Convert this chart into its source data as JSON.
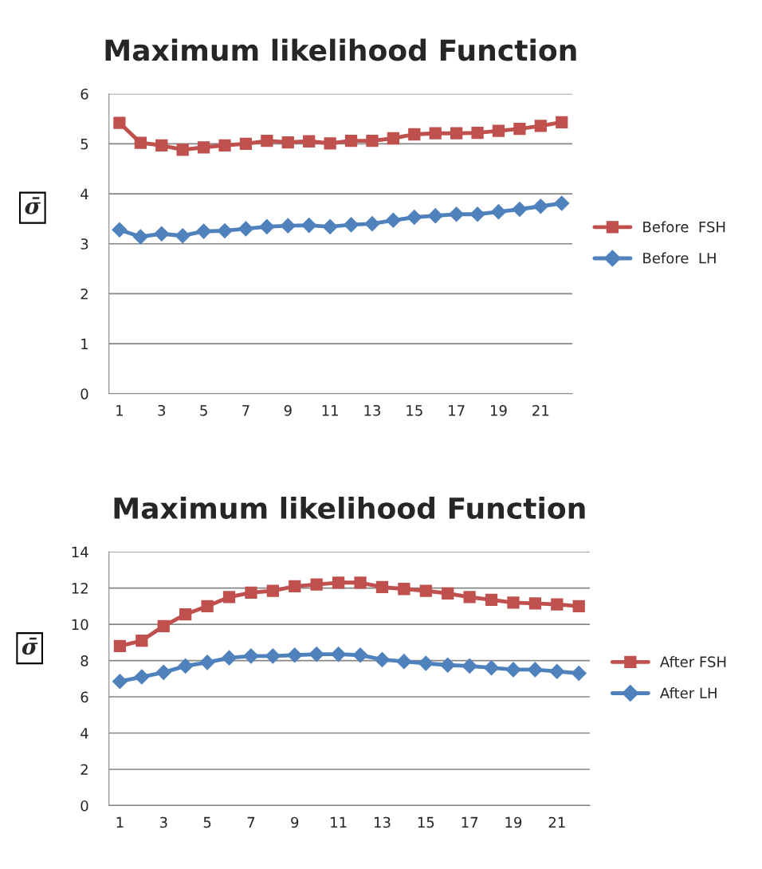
{
  "chart_data": [
    {
      "type": "line",
      "title": "Maximum likelihood Function",
      "ylabel": "σ̄",
      "categories": [
        "1",
        null,
        "3",
        null,
        "5",
        null,
        "7",
        null,
        "9",
        null,
        "11",
        null,
        "13",
        null,
        "15",
        null,
        "17",
        null,
        "19",
        null,
        "21",
        null
      ],
      "series": [
        {
          "name": "Before  FSH",
          "color": "#c0504d",
          "marker": "square",
          "values": [
            5.42,
            5.02,
            4.97,
            4.88,
            4.93,
            4.97,
            5.0,
            5.06,
            5.03,
            5.05,
            5.01,
            5.06,
            5.06,
            5.11,
            5.19,
            5.21,
            5.21,
            5.22,
            5.26,
            5.3,
            5.36,
            5.43
          ]
        },
        {
          "name": "Before  LH",
          "color": "#4f81bd",
          "marker": "diamond",
          "values": [
            3.28,
            3.14,
            3.2,
            3.16,
            3.25,
            3.26,
            3.3,
            3.34,
            3.36,
            3.37,
            3.34,
            3.38,
            3.4,
            3.47,
            3.53,
            3.56,
            3.59,
            3.59,
            3.64,
            3.69,
            3.75,
            3.81
          ]
        }
      ],
      "ylim": [
        0,
        6
      ],
      "yticks": [
        0,
        1,
        2,
        3,
        4,
        5,
        6
      ],
      "grid": "y",
      "legend": "right",
      "line_style": "solid"
    },
    {
      "type": "line",
      "title": "Maximum likelihood Function",
      "ylabel": "σ̄",
      "categories": [
        "1",
        null,
        "3",
        null,
        "5",
        null,
        "7",
        null,
        "9",
        null,
        "11",
        null,
        "13",
        null,
        "15",
        null,
        "17",
        null,
        "19",
        null,
        "21",
        null
      ],
      "series": [
        {
          "name": "After FSH",
          "color": "#c0504d",
          "marker": "square",
          "values": [
            8.8,
            9.1,
            9.9,
            10.55,
            11.0,
            11.5,
            11.75,
            11.85,
            12.1,
            12.2,
            12.3,
            12.3,
            12.05,
            11.95,
            11.85,
            11.7,
            11.5,
            11.35,
            11.2,
            11.15,
            11.1,
            11.0
          ]
        },
        {
          "name": "After LH",
          "color": "#4f81bd",
          "marker": "diamond",
          "values": [
            6.85,
            7.1,
            7.35,
            7.7,
            7.9,
            8.15,
            8.25,
            8.25,
            8.3,
            8.35,
            8.35,
            8.3,
            8.05,
            7.95,
            7.85,
            7.75,
            7.7,
            7.6,
            7.5,
            7.5,
            7.4,
            7.3
          ]
        }
      ],
      "ylim": [
        0,
        14
      ],
      "yticks": [
        0,
        2,
        4,
        6,
        8,
        10,
        12,
        14
      ],
      "grid": "y",
      "legend": "right",
      "line_style": "solid"
    }
  ]
}
